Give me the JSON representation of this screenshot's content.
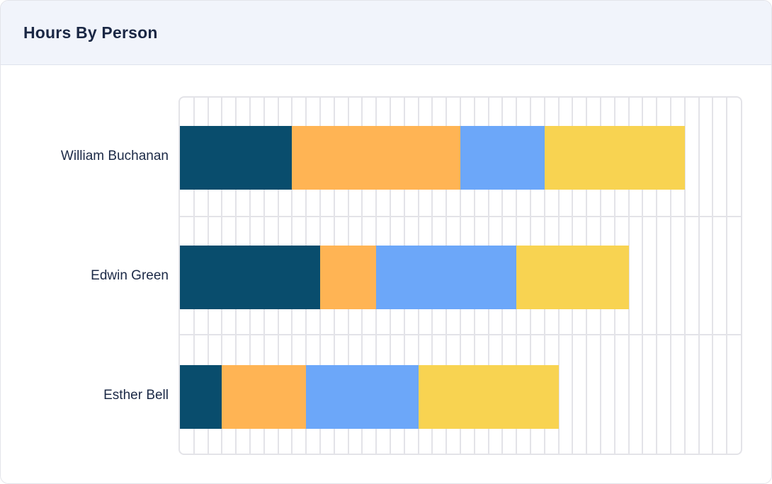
{
  "header": {
    "title": "Hours By Person"
  },
  "colors": {
    "card_bg": "#ffffff",
    "card_border": "#e3e4ea",
    "header_bg": "#f1f4fb",
    "header_border": "#dfe3ed",
    "title_text": "#1a2744",
    "label_text": "#1b2946",
    "grid": "#e3e3e8"
  },
  "chart_data": {
    "type": "bar",
    "orientation": "horizontal",
    "stacked": true,
    "title": "Hours By Person",
    "categories": [
      "William Buchanan",
      "Edwin Green",
      "Esther Bell"
    ],
    "series": [
      {
        "name": "segment-navy",
        "color": "#094d6d",
        "values": [
          8,
          10,
          3
        ]
      },
      {
        "name": "segment-orange",
        "color": "#ffb454",
        "values": [
          12,
          4,
          6
        ]
      },
      {
        "name": "segment-blue",
        "color": "#6ca7f9",
        "values": [
          6,
          10,
          8
        ]
      },
      {
        "name": "segment-yellow",
        "color": "#f8d351",
        "values": [
          10,
          8,
          10
        ]
      }
    ],
    "totals": [
      36,
      32,
      27
    ],
    "xlim": [
      0,
      40
    ],
    "grid": {
      "vertical_divisions": 40,
      "horizontal_band_separators": true,
      "grid_on": true
    },
    "legend": "none",
    "axis_tick_labels": "none",
    "xlabel": "",
    "ylabel": ""
  }
}
